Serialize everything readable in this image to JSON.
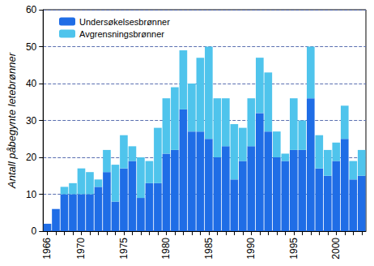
{
  "chart_data": {
    "type": "bar",
    "y_label": "Antall påbegynte letebrønner",
    "categories": [
      "1966",
      null,
      null,
      null,
      "1970",
      null,
      null,
      null,
      null,
      "1975",
      null,
      null,
      null,
      null,
      "1980",
      null,
      null,
      null,
      null,
      "1985",
      null,
      null,
      null,
      null,
      "1990",
      null,
      null,
      null,
      null,
      "1995",
      null,
      null,
      null,
      null,
      "2000",
      null,
      null,
      null
    ],
    "series": [
      {
        "name": "Undersøkelsesbrønner",
        "color": "#1f6de6",
        "values": [
          2,
          6,
          10,
          10,
          10,
          10,
          12,
          16,
          8,
          17,
          19,
          9,
          13,
          13,
          21,
          22,
          33,
          27,
          27,
          25,
          20,
          23,
          14,
          19,
          23,
          32,
          27,
          20,
          19,
          22,
          22,
          36,
          17,
          15,
          19,
          25,
          14,
          15
        ]
      },
      {
        "name": "Avgrensningsbrønner",
        "color": "#4fc4ec",
        "values": [
          0,
          0,
          2,
          3,
          7,
          6,
          2,
          6,
          10,
          9,
          4,
          11,
          6,
          15,
          15,
          17,
          16,
          13,
          20,
          25,
          16,
          13,
          15,
          9,
          13,
          15,
          16,
          7,
          2,
          14,
          8,
          14,
          9,
          7,
          5,
          9,
          5,
          7
        ]
      }
    ],
    "stacked": true,
    "ylim": [
      0,
      60
    ],
    "yticks": [
      0,
      10,
      20,
      30,
      40,
      50,
      60
    ],
    "grid": true,
    "legend": "upper left"
  }
}
